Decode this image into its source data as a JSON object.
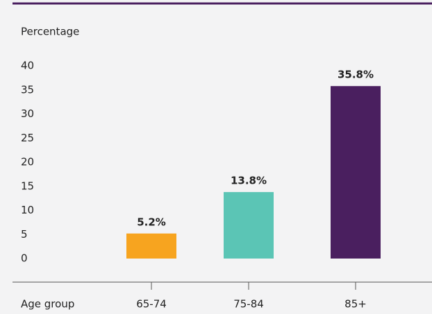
{
  "chart_data": {
    "type": "bar",
    "y_label": "Percentage",
    "x_label": "Age group",
    "categories": [
      "65-74",
      "75-84",
      "85+"
    ],
    "values": [
      5.2,
      13.8,
      35.8
    ],
    "value_labels": [
      "5.2%",
      "13.8%",
      "35.8%"
    ],
    "colors": [
      "#f7a41f",
      "#5bc5b5",
      "#4a1f5f"
    ],
    "ylim": [
      0,
      40
    ],
    "yticks": [
      0,
      5,
      10,
      15,
      20,
      25,
      30,
      35,
      40
    ],
    "grid": false
  }
}
